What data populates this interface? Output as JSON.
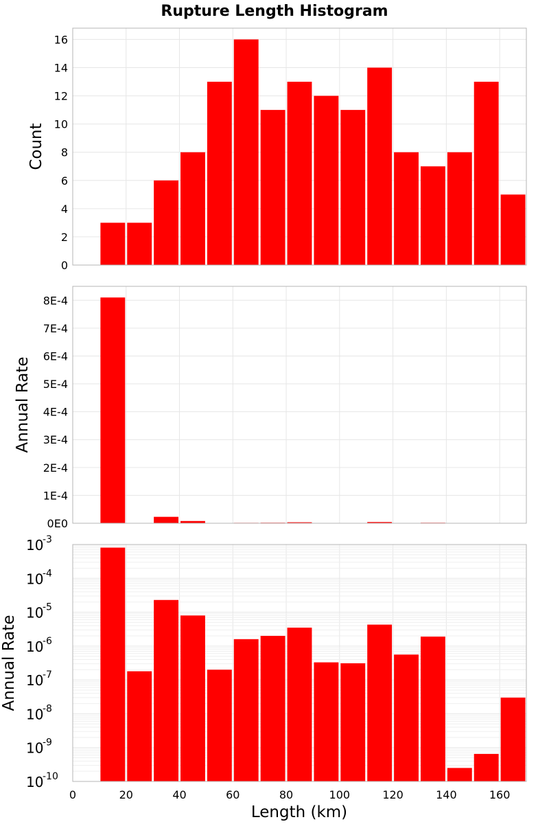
{
  "title": "Rupture Length Histogram",
  "xlabel": "Length (km)",
  "colors": {
    "bar": "#ff0000",
    "grid": "#e6e6e6",
    "frame": "#b4b4b4"
  },
  "chart_data": [
    {
      "type": "bar",
      "panel": "count",
      "ylabel": "Count",
      "scale": "linear",
      "xlim": [
        0,
        170
      ],
      "ylim": [
        0,
        16.8
      ],
      "bin_width": 10,
      "x": [
        15,
        25,
        35,
        45,
        55,
        65,
        75,
        85,
        95,
        105,
        115,
        125,
        135,
        145,
        155,
        165
      ],
      "values": [
        3,
        3,
        6,
        8,
        13,
        16,
        11,
        13,
        12,
        11,
        14,
        8,
        7,
        8,
        13,
        5
      ],
      "yticks": [
        0,
        2,
        4,
        6,
        8,
        10,
        12,
        14,
        16
      ],
      "ytick_labels": [
        "0",
        "2",
        "4",
        "6",
        "8",
        "10",
        "12",
        "14",
        "16"
      ]
    },
    {
      "type": "bar",
      "panel": "rate-linear",
      "ylabel": "Annual Rate",
      "scale": "linear",
      "xlim": [
        0,
        170
      ],
      "ylim": [
        0,
        0.00085
      ],
      "bin_width": 10,
      "x": [
        15,
        25,
        35,
        45,
        55,
        65,
        75,
        85,
        95,
        105,
        115,
        125,
        135,
        145,
        155,
        165
      ],
      "values": [
        0.00081,
        1.8e-07,
        2.3e-05,
        8e-06,
        2e-07,
        1.6e-06,
        2e-06,
        3.5e-06,
        3.3e-07,
        3.1e-07,
        4.3e-06,
        5.6e-07,
        1.9e-06,
        2.5e-10,
        6.5e-10,
        3e-08
      ],
      "yticks": [
        0,
        0.0001,
        0.0002,
        0.0003,
        0.0004,
        0.0005,
        0.0006,
        0.0007,
        0.0008
      ],
      "ytick_labels": [
        "0E0",
        "1E-4",
        "2E-4",
        "3E-4",
        "4E-4",
        "5E-4",
        "6E-4",
        "7E-4",
        "8E-4"
      ]
    },
    {
      "type": "bar",
      "panel": "rate-log",
      "ylabel": "Annual Rate",
      "scale": "log",
      "xlim": [
        0,
        170
      ],
      "ylim": [
        1e-10,
        0.001
      ],
      "bin_width": 10,
      "x": [
        15,
        25,
        35,
        45,
        55,
        65,
        75,
        85,
        95,
        105,
        115,
        125,
        135,
        145,
        155,
        165
      ],
      "values": [
        0.00081,
        1.8e-07,
        2.3e-05,
        8e-06,
        2e-07,
        1.6e-06,
        2e-06,
        3.5e-06,
        3.3e-07,
        3.1e-07,
        4.3e-06,
        5.6e-07,
        1.9e-06,
        2.5e-10,
        6.5e-10,
        3e-08
      ],
      "yticks": [
        0.001,
        0.0001,
        1e-05,
        1e-06,
        1e-07,
        1e-08,
        1e-09,
        1e-10
      ],
      "ytick_base": "10",
      "ytick_exponents": [
        "-3",
        "-4",
        "-5",
        "-6",
        "-7",
        "-8",
        "-9",
        "-10"
      ],
      "xticks": [
        0,
        20,
        40,
        60,
        80,
        100,
        120,
        140,
        160
      ],
      "xtick_labels": [
        "0",
        "20",
        "40",
        "60",
        "80",
        "100",
        "120",
        "140",
        "160"
      ]
    }
  ]
}
